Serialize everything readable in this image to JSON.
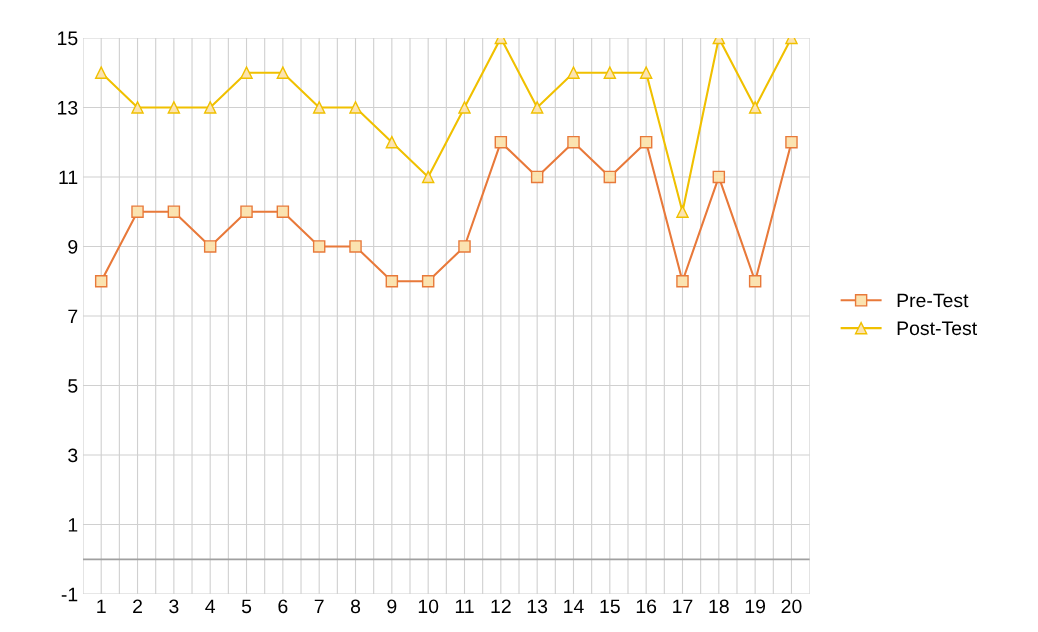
{
  "chart_data": {
    "type": "line",
    "categories": [
      "1",
      "2",
      "3",
      "4",
      "5",
      "6",
      "7",
      "8",
      "9",
      "10",
      "11",
      "12",
      "13",
      "14",
      "15",
      "16",
      "17",
      "18",
      "19",
      "20"
    ],
    "series": [
      {
        "name": "Pre-Test",
        "color": "#e8793a",
        "marker": "square",
        "values": [
          8,
          10,
          10,
          9,
          10,
          10,
          9,
          9,
          8,
          8,
          9,
          12,
          11,
          12,
          11,
          12,
          8,
          11,
          8,
          12
        ]
      },
      {
        "name": "Post-Test",
        "color": "#f0c000",
        "marker": "triangle",
        "values": [
          14,
          13,
          13,
          13,
          14,
          14,
          13,
          13,
          12,
          11,
          13,
          15,
          13,
          14,
          14,
          14,
          10,
          15,
          13,
          15
        ]
      }
    ],
    "ylim": [
      -1,
      15
    ],
    "yticks": [
      -1,
      1,
      3,
      5,
      7,
      9,
      11,
      13,
      15
    ],
    "ref_lines": [
      {
        "axis": "y",
        "value": 0,
        "color": "#a0a0a0"
      }
    ],
    "grid": true,
    "legend": "right",
    "line_style": "solid"
  }
}
